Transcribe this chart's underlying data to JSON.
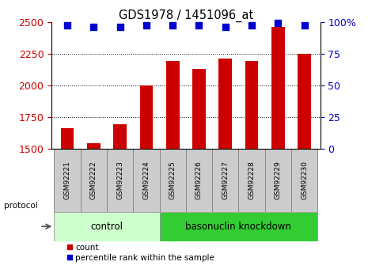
{
  "title": "GDS1978 / 1451096_at",
  "samples": [
    "GSM92221",
    "GSM92222",
    "GSM92223",
    "GSM92224",
    "GSM92225",
    "GSM92226",
    "GSM92227",
    "GSM92228",
    "GSM92229",
    "GSM92230"
  ],
  "counts": [
    1660,
    1540,
    1690,
    2000,
    2190,
    2130,
    2210,
    2190,
    2460,
    2250
  ],
  "percentile_ranks": [
    97,
    96,
    96,
    97,
    97,
    97,
    96,
    97,
    99,
    97
  ],
  "ylim_left": [
    1500,
    2500
  ],
  "yticks_left": [
    1500,
    1750,
    2000,
    2250,
    2500
  ],
  "yticks_right_labels": [
    "0",
    "25",
    "50",
    "75",
    "100%"
  ],
  "bar_color": "#cc0000",
  "dot_color": "#0000cc",
  "control_indices": [
    0,
    1,
    2,
    3
  ],
  "knockdown_indices": [
    4,
    5,
    6,
    7,
    8,
    9
  ],
  "control_label": "control",
  "knockdown_label": "basonuclin knockdown",
  "control_color": "#ccffcc",
  "knockdown_color": "#33cc33",
  "protocol_label": "protocol",
  "legend_count": "count",
  "legend_percentile": "percentile rank within the sample",
  "background_color": "#ffffff",
  "tick_label_color_left": "#cc0000",
  "tick_label_color_right": "#0000cc",
  "bar_width": 0.5,
  "dot_size": 35,
  "tickbox_color": "#cccccc",
  "tickbox_edge": "#888888"
}
